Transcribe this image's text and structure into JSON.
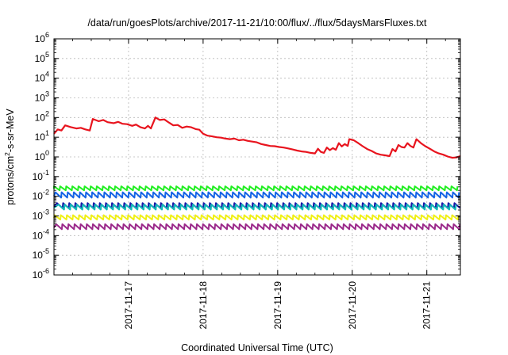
{
  "chart_data": {
    "type": "line",
    "title": "/data/run/goesPlots/archive/2017-11-21/10:00/flux/../flux/5daysMarsFluxes.txt",
    "xlabel": "Coordinated Universal Time (UTC)",
    "ylabel": {
      "prefix": "protons/cm",
      "sup": "2",
      "suffix": "-s-sr-MeV"
    },
    "yscale": "log",
    "ylim_exponent": [
      -6,
      6
    ],
    "ytick_exponents": [
      -6,
      -5,
      -4,
      -3,
      -2,
      -1,
      0,
      1,
      2,
      3,
      4,
      5,
      6
    ],
    "ytick_base": "10",
    "xticks": [
      "2017-11-17",
      "2017-11-18",
      "2017-11-19",
      "2017-11-20",
      "2017-11-21"
    ],
    "grid": true,
    "legend": "none",
    "x_unit": "day index relative to 2017-11-16T00:00",
    "xlim": [
      0.0,
      5.45
    ],
    "series": [
      {
        "color": "#e8141e",
        "stroke": 2.2,
        "points": [
          [
            0.0,
            15
          ],
          [
            0.05,
            25
          ],
          [
            0.1,
            22
          ],
          [
            0.15,
            40
          ],
          [
            0.22,
            33
          ],
          [
            0.3,
            28
          ],
          [
            0.36,
            30
          ],
          [
            0.42,
            25
          ],
          [
            0.48,
            22
          ],
          [
            0.52,
            85
          ],
          [
            0.6,
            65
          ],
          [
            0.66,
            75
          ],
          [
            0.72,
            58
          ],
          [
            0.8,
            52
          ],
          [
            0.86,
            60
          ],
          [
            0.92,
            48
          ],
          [
            0.98,
            46
          ],
          [
            1.05,
            38
          ],
          [
            1.1,
            44
          ],
          [
            1.16,
            32
          ],
          [
            1.22,
            28
          ],
          [
            1.26,
            38
          ],
          [
            1.3,
            28
          ],
          [
            1.36,
            100
          ],
          [
            1.42,
            75
          ],
          [
            1.48,
            80
          ],
          [
            1.54,
            56
          ],
          [
            1.6,
            40
          ],
          [
            1.66,
            42
          ],
          [
            1.72,
            30
          ],
          [
            1.78,
            35
          ],
          [
            1.84,
            32
          ],
          [
            1.9,
            26
          ],
          [
            1.95,
            24
          ],
          [
            2.0,
            15
          ],
          [
            2.06,
            12
          ],
          [
            2.12,
            11
          ],
          [
            2.18,
            10
          ],
          [
            2.24,
            9.5
          ],
          [
            2.3,
            8.5
          ],
          [
            2.36,
            8
          ],
          [
            2.42,
            8.5
          ],
          [
            2.48,
            7
          ],
          [
            2.54,
            7.5
          ],
          [
            2.6,
            6.5
          ],
          [
            2.66,
            6
          ],
          [
            2.72,
            5.5
          ],
          [
            2.78,
            4.5
          ],
          [
            2.84,
            4
          ],
          [
            2.9,
            3.6
          ],
          [
            2.96,
            3.5
          ],
          [
            3.02,
            3.2
          ],
          [
            3.08,
            3
          ],
          [
            3.14,
            2.7
          ],
          [
            3.2,
            2.4
          ],
          [
            3.26,
            2.1
          ],
          [
            3.32,
            1.9
          ],
          [
            3.38,
            1.8
          ],
          [
            3.44,
            1.6
          ],
          [
            3.5,
            1.5
          ],
          [
            3.54,
            2.6
          ],
          [
            3.58,
            1.8
          ],
          [
            3.62,
            1.6
          ],
          [
            3.66,
            3.0
          ],
          [
            3.7,
            2.2
          ],
          [
            3.74,
            2.8
          ],
          [
            3.78,
            2.3
          ],
          [
            3.82,
            5.0
          ],
          [
            3.86,
            3.4
          ],
          [
            3.9,
            4.5
          ],
          [
            3.94,
            3.6
          ],
          [
            3.96,
            8
          ],
          [
            4.02,
            7
          ],
          [
            4.08,
            5
          ],
          [
            4.14,
            3.5
          ],
          [
            4.2,
            2.5
          ],
          [
            4.26,
            2
          ],
          [
            4.32,
            1.5
          ],
          [
            4.38,
            1.3
          ],
          [
            4.44,
            1.2
          ],
          [
            4.5,
            1.1
          ],
          [
            4.54,
            2.5
          ],
          [
            4.58,
            1.9
          ],
          [
            4.62,
            4.0
          ],
          [
            4.66,
            3.2
          ],
          [
            4.7,
            3.0
          ],
          [
            4.74,
            5.0
          ],
          [
            4.78,
            3.6
          ],
          [
            4.82,
            3.0
          ],
          [
            4.86,
            8
          ],
          [
            4.92,
            5
          ],
          [
            4.98,
            3.5
          ],
          [
            5.04,
            2.6
          ],
          [
            5.1,
            1.9
          ],
          [
            5.16,
            1.5
          ],
          [
            5.22,
            1.3
          ],
          [
            5.28,
            1.05
          ],
          [
            5.34,
            0.9
          ],
          [
            5.4,
            0.95
          ],
          [
            5.45,
            1.1
          ]
        ]
      },
      {
        "color": "#22ee22",
        "stroke": 2,
        "sawtooth": {
          "peak": 0.032,
          "trough": 0.02,
          "period": 0.082,
          "phase": 0.0
        }
      },
      {
        "color": "#1565e6",
        "stroke": 2,
        "sawtooth": {
          "peak": 0.016,
          "trough": 0.0085,
          "period": 0.082,
          "phase": 0.02
        }
      },
      {
        "color": "#1a1aa8",
        "stroke": 2,
        "sawtooth": {
          "peak": 0.0045,
          "trough": 0.0025,
          "period": 0.082,
          "phase": 0.04
        }
      },
      {
        "color": "#12b8b8",
        "stroke": 2,
        "sawtooth": {
          "peak": 0.0038,
          "trough": 0.0021,
          "period": 0.082,
          "phase": 0.06
        }
      },
      {
        "color": "#f0f014",
        "stroke": 2,
        "sawtooth": {
          "peak": 0.0011,
          "trough": 0.00065,
          "period": 0.082,
          "phase": 0.01
        }
      },
      {
        "color": "#9b2a8a",
        "stroke": 2,
        "sawtooth": {
          "peak": 0.00038,
          "trough": 0.00021,
          "period": 0.082,
          "phase": 0.03
        }
      }
    ]
  }
}
